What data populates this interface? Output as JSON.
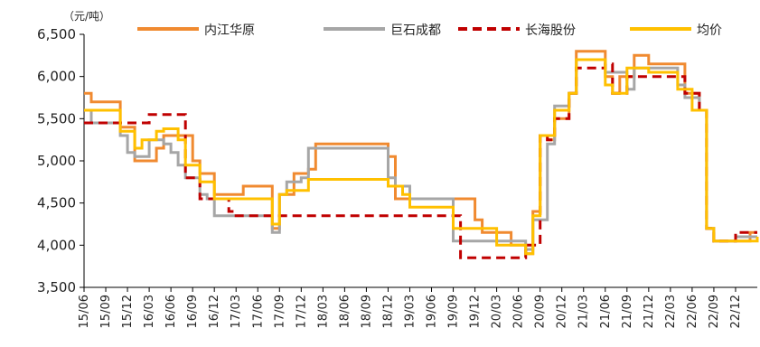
{
  "chart_data": {
    "type": "line",
    "unit_label": "（元/吨）",
    "ylim": [
      3500,
      6500
    ],
    "y_ticks": [
      "3,500",
      "4,000",
      "4,500",
      "5,000",
      "5,500",
      "6,000",
      "6,500"
    ],
    "x_ticks": [
      "15/06",
      "15/09",
      "15/12",
      "16/03",
      "16/06",
      "16/09",
      "16/12",
      "17/03",
      "17/06",
      "17/09",
      "17/12",
      "18/03",
      "18/06",
      "18/09",
      "18/12",
      "19/03",
      "19/06",
      "19/09",
      "19/12",
      "20/03",
      "20/06",
      "20/09",
      "20/12",
      "21/03",
      "21/06",
      "21/09",
      "21/12",
      "22/03",
      "22/06",
      "22/09",
      "22/12"
    ],
    "x_range": [
      "2015-06",
      "2023-03"
    ],
    "grid": false,
    "legend_position": "top",
    "series": [
      {
        "name": "内江华原",
        "color": "#f08a30",
        "dash": "solid",
        "step": true,
        "points": [
          [
            "2015-06",
            5800
          ],
          [
            "2015-07",
            5700
          ],
          [
            "2015-11",
            5400
          ],
          [
            "2016-01",
            5000
          ],
          [
            "2016-04",
            5150
          ],
          [
            "2016-05",
            5300
          ],
          [
            "2016-09",
            5000
          ],
          [
            "2016-10",
            4850
          ],
          [
            "2016-12",
            4600
          ],
          [
            "2017-04",
            4700
          ],
          [
            "2017-08",
            4200
          ],
          [
            "2017-09",
            4600
          ],
          [
            "2017-11",
            4850
          ],
          [
            "2018-01",
            4900
          ],
          [
            "2018-02",
            5200
          ],
          [
            "2018-12",
            5050
          ],
          [
            "2019-01",
            4550
          ],
          [
            "2019-12",
            4300
          ],
          [
            "2020-01",
            4150
          ],
          [
            "2020-05",
            4000
          ],
          [
            "2020-07",
            3900
          ],
          [
            "2020-08",
            4400
          ],
          [
            "2020-09",
            5300
          ],
          [
            "2020-10",
            5250
          ],
          [
            "2020-11",
            5500
          ],
          [
            "2021-01",
            5800
          ],
          [
            "2021-02",
            6300
          ],
          [
            "2021-06",
            6000
          ],
          [
            "2021-07",
            5800
          ],
          [
            "2021-08",
            6000
          ],
          [
            "2021-10",
            6250
          ],
          [
            "2021-12",
            6150
          ],
          [
            "2022-05",
            5800
          ],
          [
            "2022-07",
            5600
          ],
          [
            "2022-08",
            4200
          ],
          [
            "2022-09",
            4050
          ],
          [
            "2022-12",
            4050
          ],
          [
            "2023-02",
            4150
          ],
          [
            "2023-03",
            4150
          ]
        ]
      },
      {
        "name": "巨石成都",
        "color": "#a6a6a6",
        "dash": "solid",
        "step": true,
        "points": [
          [
            "2015-06",
            5600
          ],
          [
            "2015-07",
            5450
          ],
          [
            "2015-11",
            5300
          ],
          [
            "2015-12",
            5100
          ],
          [
            "2016-01",
            5050
          ],
          [
            "2016-03",
            5250
          ],
          [
            "2016-05",
            5200
          ],
          [
            "2016-06",
            5100
          ],
          [
            "2016-07",
            4950
          ],
          [
            "2016-08",
            4800
          ],
          [
            "2016-10",
            4600
          ],
          [
            "2016-11",
            4550
          ],
          [
            "2016-12",
            4350
          ],
          [
            "2017-08",
            4150
          ],
          [
            "2017-09",
            4600
          ],
          [
            "2017-10",
            4750
          ],
          [
            "2017-12",
            4800
          ],
          [
            "2018-01",
            5150
          ],
          [
            "2018-12",
            4800
          ],
          [
            "2019-01",
            4700
          ],
          [
            "2019-03",
            4550
          ],
          [
            "2019-09",
            4050
          ],
          [
            "2020-03",
            4050
          ],
          [
            "2020-07",
            3950
          ],
          [
            "2020-08",
            4300
          ],
          [
            "2020-10",
            5200
          ],
          [
            "2020-11",
            5650
          ],
          [
            "2021-01",
            5800
          ],
          [
            "2021-02",
            6200
          ],
          [
            "2021-06",
            6050
          ],
          [
            "2021-09",
            5850
          ],
          [
            "2021-10",
            6100
          ],
          [
            "2022-04",
            5900
          ],
          [
            "2022-05",
            5750
          ],
          [
            "2022-07",
            5600
          ],
          [
            "2022-08",
            4200
          ],
          [
            "2022-09",
            4050
          ],
          [
            "2022-12",
            4100
          ],
          [
            "2023-03",
            4100
          ]
        ]
      },
      {
        "name": "长海股份",
        "color": "#c00000",
        "dash": "dashed",
        "step": true,
        "points": [
          [
            "2015-06",
            5450
          ],
          [
            "2016-02",
            5450
          ],
          [
            "2016-03",
            5550
          ],
          [
            "2016-07",
            5550
          ],
          [
            "2016-08",
            4800
          ],
          [
            "2016-10",
            4550
          ],
          [
            "2017-02",
            4400
          ],
          [
            "2017-03",
            4350
          ],
          [
            "2019-10",
            3850
          ],
          [
            "2020-06",
            3850
          ],
          [
            "2020-07",
            4000
          ],
          [
            "2020-09",
            5300
          ],
          [
            "2020-10",
            5250
          ],
          [
            "2020-11",
            5500
          ],
          [
            "2021-01",
            5800
          ],
          [
            "2021-02",
            6100
          ],
          [
            "2021-06",
            6150
          ],
          [
            "2021-07",
            5800
          ],
          [
            "2021-09",
            6000
          ],
          [
            "2022-04",
            6000
          ],
          [
            "2022-05",
            5800
          ],
          [
            "2022-07",
            5600
          ],
          [
            "2022-08",
            4200
          ],
          [
            "2022-09",
            4050
          ],
          [
            "2022-12",
            4150
          ],
          [
            "2023-03",
            4150
          ]
        ]
      },
      {
        "name": "均价",
        "color": "#ffc000",
        "dash": "solid",
        "step": true,
        "points": [
          [
            "2015-06",
            5600
          ],
          [
            "2015-11",
            5350
          ],
          [
            "2016-01",
            5150
          ],
          [
            "2016-02",
            5250
          ],
          [
            "2016-04",
            5350
          ],
          [
            "2016-05",
            5380
          ],
          [
            "2016-07",
            5250
          ],
          [
            "2016-08",
            4950
          ],
          [
            "2016-10",
            4750
          ],
          [
            "2016-12",
            4550
          ],
          [
            "2017-08",
            4250
          ],
          [
            "2017-09",
            4600
          ],
          [
            "2017-10",
            4650
          ],
          [
            "2018-01",
            4780
          ],
          [
            "2018-12",
            4700
          ],
          [
            "2019-02",
            4600
          ],
          [
            "2019-03",
            4450
          ],
          [
            "2019-09",
            4200
          ],
          [
            "2020-03",
            4000
          ],
          [
            "2020-07",
            3900
          ],
          [
            "2020-08",
            4350
          ],
          [
            "2020-09",
            5300
          ],
          [
            "2020-10",
            5300
          ],
          [
            "2020-11",
            5600
          ],
          [
            "2021-01",
            5800
          ],
          [
            "2021-02",
            6200
          ],
          [
            "2021-06",
            5900
          ],
          [
            "2021-07",
            5800
          ],
          [
            "2021-09",
            6100
          ],
          [
            "2021-12",
            6050
          ],
          [
            "2022-04",
            5850
          ],
          [
            "2022-06",
            5600
          ],
          [
            "2022-08",
            4200
          ],
          [
            "2022-09",
            4050
          ],
          [
            "2023-03",
            4100
          ]
        ]
      }
    ]
  }
}
